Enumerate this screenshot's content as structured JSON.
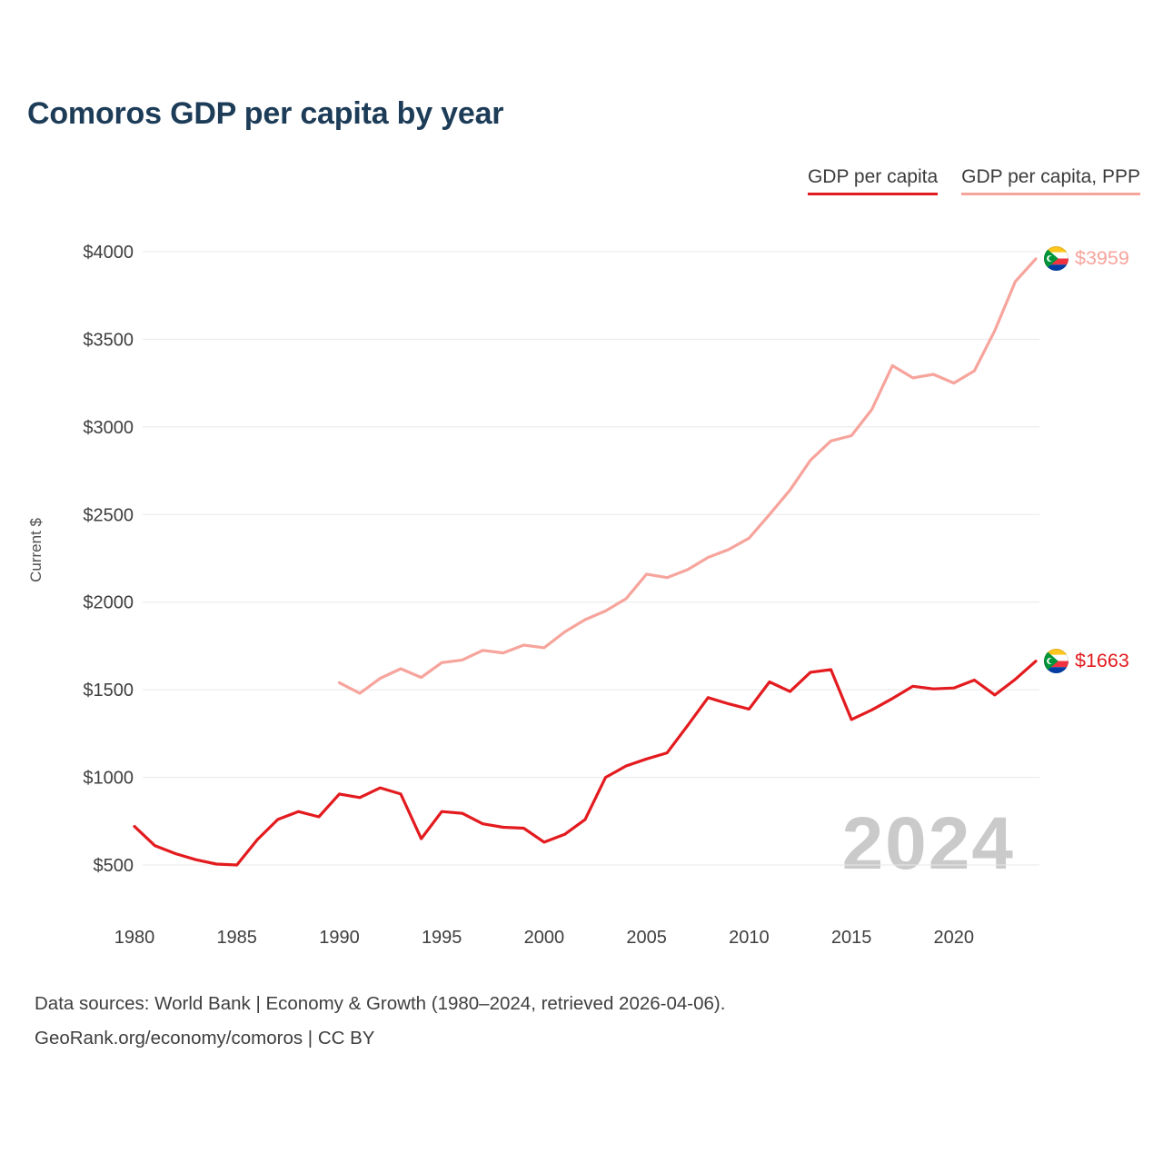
{
  "title": "Comoros GDP per capita by year",
  "ylabel": "Current $",
  "watermark": "2024",
  "legend": [
    {
      "label": "GDP per capita",
      "color": "#e31b1f"
    },
    {
      "label": "GDP per capita, PPP",
      "color": "#f6a49c"
    }
  ],
  "footer": {
    "line1": "Data sources: World Bank | Economy & Growth (1980–2024, retrieved 2026-04-06).",
    "line2": "GeoRank.org/economy/comoros | CC BY"
  },
  "colors": {
    "title": "#1d3c58",
    "gridline": "#e8e8e8",
    "tick_text": "#3e3e3e",
    "watermark": "#cacaca"
  },
  "chart_data": {
    "type": "line",
    "title": "Comoros GDP per capita by year",
    "xlabel": "",
    "ylabel": "Current $",
    "legend_position": "top-right",
    "grid": "horizontal",
    "xlim": [
      1980,
      2024
    ],
    "ylim": [
      500,
      4000
    ],
    "x_ticks": [
      1980,
      1985,
      1990,
      1995,
      2000,
      2005,
      2010,
      2015,
      2020
    ],
    "x_tick_labels": [
      "1980",
      "1985",
      "1990",
      "1995",
      "2000",
      "2005",
      "2010",
      "2015",
      "2020"
    ],
    "y_ticks": [
      500,
      1000,
      1500,
      2000,
      2500,
      3000,
      3500,
      4000
    ],
    "y_tick_labels": [
      "$500",
      "$1000",
      "$1500",
      "$2000",
      "$2500",
      "$3000",
      "$3500",
      "$4000"
    ],
    "series": [
      {
        "name": "GDP per capita",
        "color": "#e31b1f",
        "start_year": 1980,
        "end_label": "$1663",
        "values": [
          720,
          610,
          565,
          530,
          505,
          500,
          645,
          760,
          805,
          775,
          905,
          885,
          940,
          905,
          650,
          805,
          795,
          735,
          715,
          710,
          630,
          675,
          760,
          1000,
          1065,
          1105,
          1140,
          1295,
          1455,
          1420,
          1390,
          1545,
          1490,
          1600,
          1615,
          1330,
          1385,
          1450,
          1520,
          1505,
          1510,
          1555,
          1470,
          1560,
          1663
        ]
      },
      {
        "name": "GDP per capita, PPP",
        "color": "#f6a49c",
        "start_year": 1990,
        "end_label": "$3959",
        "values": [
          1540,
          1480,
          1565,
          1620,
          1570,
          1655,
          1670,
          1725,
          1710,
          1755,
          1740,
          1830,
          1900,
          1950,
          2020,
          2160,
          2140,
          2185,
          2255,
          2300,
          2365,
          2500,
          2640,
          2810,
          2920,
          2950,
          3100,
          3350,
          3280,
          3300,
          3250,
          3320,
          3550,
          3830,
          3959
        ]
      }
    ]
  }
}
